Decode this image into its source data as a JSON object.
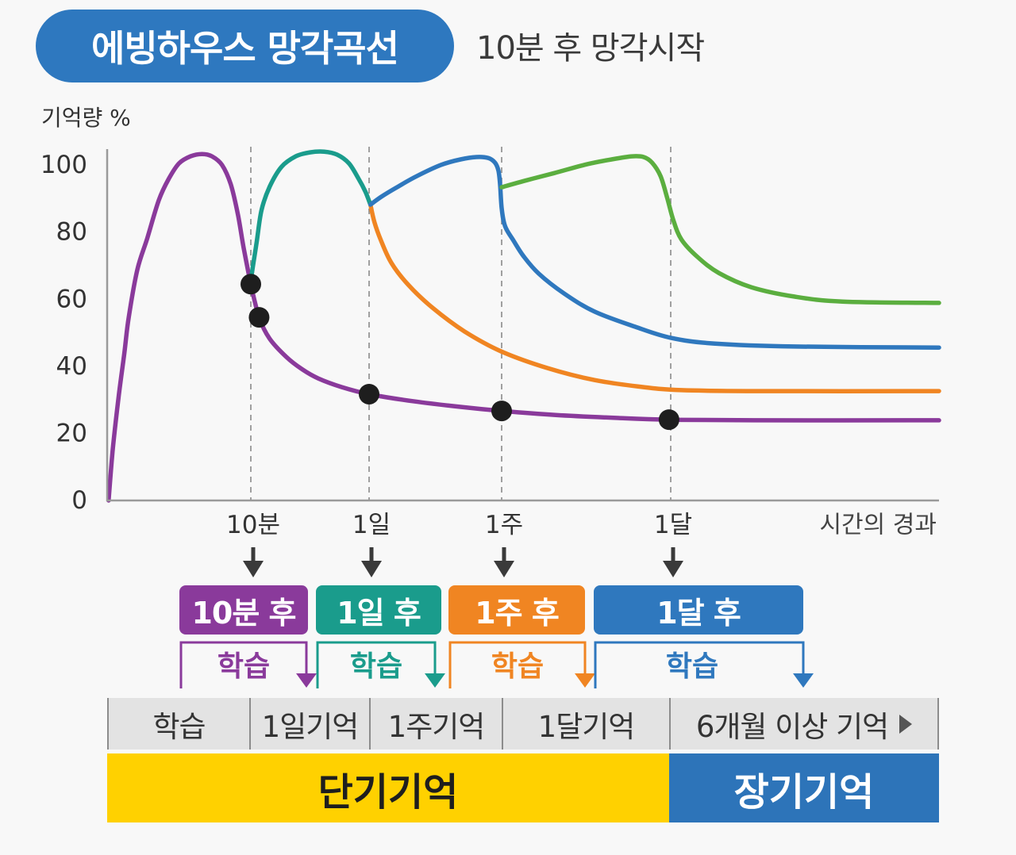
{
  "colors": {
    "page_bg": "#F8F8F8",
    "title_pill": "#2E78BF",
    "axis": "#9A9A9A",
    "grid": "#8A8A8A",
    "marker": "#1E1E1E",
    "arrow": "#3A3A3A",
    "tick_text": "#333333",
    "stage_bar": "#E3E3E3",
    "short_term": "#FFD100",
    "long_term": "#2D74B9"
  },
  "icons": {
    "tick_arrow": "arrow-down-icon",
    "more": "triangle-right-icon"
  },
  "chart_data": {
    "type": "line",
    "title": "에빙하우스 망각곡선",
    "subtitle": "10분 후 망각시작",
    "ylabel": "기억량 %",
    "xlabel": "시간의 경과",
    "ylim": [
      0,
      105
    ],
    "xlim": [
      0,
      5
    ],
    "yticks": [
      100,
      80,
      60,
      40,
      20,
      0
    ],
    "xticks": [
      {
        "value": 1,
        "label": "10분"
      },
      {
        "value": 2,
        "label": "1일"
      },
      {
        "value": 3,
        "label": "1주"
      },
      {
        "value": 4,
        "label": "1달"
      }
    ],
    "grid": true,
    "series": [
      {
        "color": "#8A3A9B",
        "points": [
          [
            0.01,
            0
          ],
          [
            0.04,
            15.6
          ],
          [
            0.08,
            31.0
          ],
          [
            0.12,
            44.0
          ],
          [
            0.15,
            54.6
          ],
          [
            0.21,
            68.8
          ],
          [
            0.28,
            78.3
          ],
          [
            0.36,
            89.6
          ],
          [
            0.43,
            96.0
          ],
          [
            0.5,
            100.5
          ],
          [
            0.58,
            102.6
          ],
          [
            0.66,
            103.3
          ],
          [
            0.73,
            102.6
          ],
          [
            0.8,
            100.0
          ],
          [
            0.86,
            94.3
          ],
          [
            0.91,
            85.3
          ],
          [
            0.95,
            75.4
          ],
          [
            1.0,
            64.5
          ],
          [
            1.07,
            54.6
          ],
          [
            1.16,
            48.2
          ],
          [
            1.3,
            42.8
          ],
          [
            1.43,
            39.2
          ],
          [
            1.57,
            36.4
          ],
          [
            1.77,
            33.8
          ],
          [
            2.0,
            31.7
          ],
          [
            2.33,
            29.6
          ],
          [
            2.69,
            27.9
          ],
          [
            3.0,
            26.7
          ],
          [
            3.32,
            25.5
          ],
          [
            3.69,
            24.6
          ],
          [
            3.99,
            24.1
          ],
          [
            4.31,
            23.9
          ],
          [
            5.0,
            23.9
          ]
        ]
      },
      {
        "color": "#1A9C8C",
        "points": [
          [
            1.0,
            64.5
          ],
          [
            1.01,
            68.0
          ],
          [
            1.05,
            77.1
          ],
          [
            1.09,
            86.5
          ],
          [
            1.16,
            93.6
          ],
          [
            1.26,
            99.5
          ],
          [
            1.38,
            102.6
          ],
          [
            1.5,
            103.8
          ],
          [
            1.62,
            104.0
          ],
          [
            1.73,
            103.1
          ],
          [
            1.83,
            100.5
          ],
          [
            1.91,
            96.0
          ],
          [
            1.97,
            92.0
          ],
          [
            2.01,
            88.2
          ]
        ]
      },
      {
        "color": "#F08522",
        "points": [
          [
            2.01,
            88.2
          ],
          [
            2.04,
            83.0
          ],
          [
            2.09,
            77.5
          ],
          [
            2.17,
            70.7
          ],
          [
            2.3,
            64.1
          ],
          [
            2.48,
            57.4
          ],
          [
            2.72,
            50.4
          ],
          [
            3.0,
            44.4
          ],
          [
            3.27,
            39.5
          ],
          [
            3.55,
            35.9
          ],
          [
            3.84,
            33.8
          ],
          [
            4.04,
            32.9
          ],
          [
            4.31,
            32.6
          ],
          [
            5.0,
            32.6
          ]
        ]
      },
      {
        "color": "#2F78BE",
        "points": [
          [
            2.01,
            88.2
          ],
          [
            2.09,
            90.5
          ],
          [
            2.21,
            93.4
          ],
          [
            2.36,
            96.7
          ],
          [
            2.54,
            100.0
          ],
          [
            2.69,
            101.7
          ],
          [
            2.81,
            102.4
          ],
          [
            2.9,
            102.1
          ],
          [
            2.95,
            100.7
          ],
          [
            2.976,
            98.3
          ],
          [
            2.988,
            94.3
          ],
          [
            3.0,
            87.2
          ],
          [
            3.02,
            81.8
          ],
          [
            3.07,
            77.5
          ],
          [
            3.13,
            72.8
          ],
          [
            3.22,
            67.6
          ],
          [
            3.37,
            61.7
          ],
          [
            3.55,
            56.3
          ],
          [
            3.79,
            51.8
          ],
          [
            4.0,
            48.5
          ],
          [
            4.16,
            46.8
          ],
          [
            4.46,
            45.9
          ],
          [
            5.0,
            45.6
          ]
        ]
      },
      {
        "color": "#5BAE3F",
        "points": [
          [
            3.0,
            93.4
          ],
          [
            3.15,
            95.5
          ],
          [
            3.31,
            97.6
          ],
          [
            3.5,
            100.2
          ],
          [
            3.65,
            101.7
          ],
          [
            3.77,
            102.6
          ],
          [
            3.84,
            102.4
          ],
          [
            3.89,
            100.7
          ],
          [
            3.94,
            96.7
          ],
          [
            3.98,
            90.1
          ],
          [
            4.01,
            83.5
          ],
          [
            4.04,
            77.8
          ],
          [
            4.1,
            72.6
          ],
          [
            4.18,
            67.8
          ],
          [
            4.3,
            63.6
          ],
          [
            4.46,
            60.8
          ],
          [
            4.64,
            59.3
          ],
          [
            5.0,
            58.9
          ]
        ]
      }
    ],
    "markers": [
      {
        "x": 1.0,
        "y": 64.5
      },
      {
        "x": 1.07,
        "y": 54.6
      },
      {
        "x": 2.0,
        "y": 31.7
      },
      {
        "x": 3.0,
        "y": 26.7
      },
      {
        "x": 3.99,
        "y": 24.1
      }
    ]
  },
  "reviews": [
    {
      "label": "10분 후",
      "note": "학습",
      "color": "#8A3A9B"
    },
    {
      "label": "1일 후",
      "note": "학습",
      "color": "#1A9C8C"
    },
    {
      "label": "1주 후",
      "note": "학습",
      "color": "#F08522"
    },
    {
      "label": "1달 후",
      "note": "학습",
      "color": "#2F78BE"
    }
  ],
  "memory_stages": [
    "학습",
    "1일기억",
    "1주기억",
    "1달기억",
    "6개월 이상 기억"
  ],
  "memory_types": {
    "short_term": "단기기억",
    "long_term": "장기기억"
  }
}
